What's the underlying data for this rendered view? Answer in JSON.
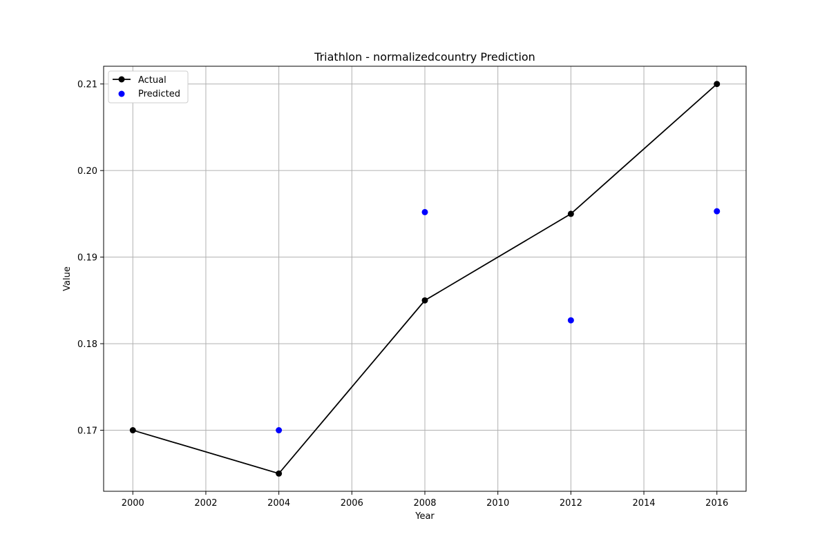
{
  "chart_data": {
    "type": "line",
    "title": "Triathlon - normalizedcountry Prediction",
    "xlabel": "Year",
    "ylabel": "Value",
    "xlim": [
      1999.2,
      2016.8
    ],
    "ylim": [
      0.16295,
      0.21205
    ],
    "xticks": [
      2000,
      2002,
      2004,
      2006,
      2008,
      2010,
      2012,
      2014,
      2016
    ],
    "yticks": [
      0.17,
      0.18,
      0.19,
      0.2,
      0.21
    ],
    "ytick_labels": [
      "0.17",
      "0.18",
      "0.19",
      "0.20",
      "0.21"
    ],
    "grid": true,
    "legend_position": "upper-left",
    "series": [
      {
        "name": "Actual",
        "kind": "line",
        "color": "#000000",
        "x": [
          2000,
          2004,
          2008,
          2012,
          2016
        ],
        "y": [
          0.17,
          0.165,
          0.185,
          0.195,
          0.21
        ]
      },
      {
        "name": "Predicted",
        "kind": "scatter",
        "color": "#0000ff",
        "x": [
          2004,
          2008,
          2012,
          2016
        ],
        "y": [
          0.17,
          0.1952,
          0.1827,
          0.1953
        ]
      }
    ]
  }
}
